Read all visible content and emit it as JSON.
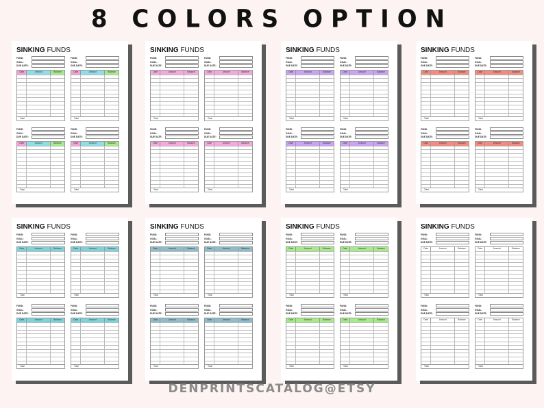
{
  "headline": "8 COLORS OPTION",
  "footer": "DENPRINTSCATALOG@ETSY",
  "template": {
    "title_bold": "SINKING",
    "title_rest": "FUNDS",
    "fields": [
      "FUND:",
      "GOAL:",
      "DUE DATE:"
    ],
    "columns": [
      "Date",
      "Amount",
      "Balance"
    ],
    "total_label": "Total"
  },
  "pages": [
    {
      "colors": [
        "#f5a3d6",
        "#8fdde6",
        "#a9ea8e"
      ]
    },
    {
      "colors": [
        "#f3a9dc",
        "#f3a9dc",
        "#f3a9dc"
      ]
    },
    {
      "colors": [
        "#caa3f2",
        "#caa3f2",
        "#caa3f2"
      ]
    },
    {
      "colors": [
        "#f08d80",
        "#f08d80",
        "#f08d80"
      ]
    },
    {
      "colors": [
        "#7ed3da",
        "#7ed3da",
        "#7ed3da"
      ]
    },
    {
      "colors": [
        "#8dbccb",
        "#8dbccb",
        "#8dbccb"
      ]
    },
    {
      "colors": [
        "#a6eb8b",
        "#a6eb8b",
        "#a6eb8b"
      ]
    },
    {
      "colors": [
        "#ffffff",
        "#ffffff",
        "#ffffff"
      ]
    }
  ]
}
